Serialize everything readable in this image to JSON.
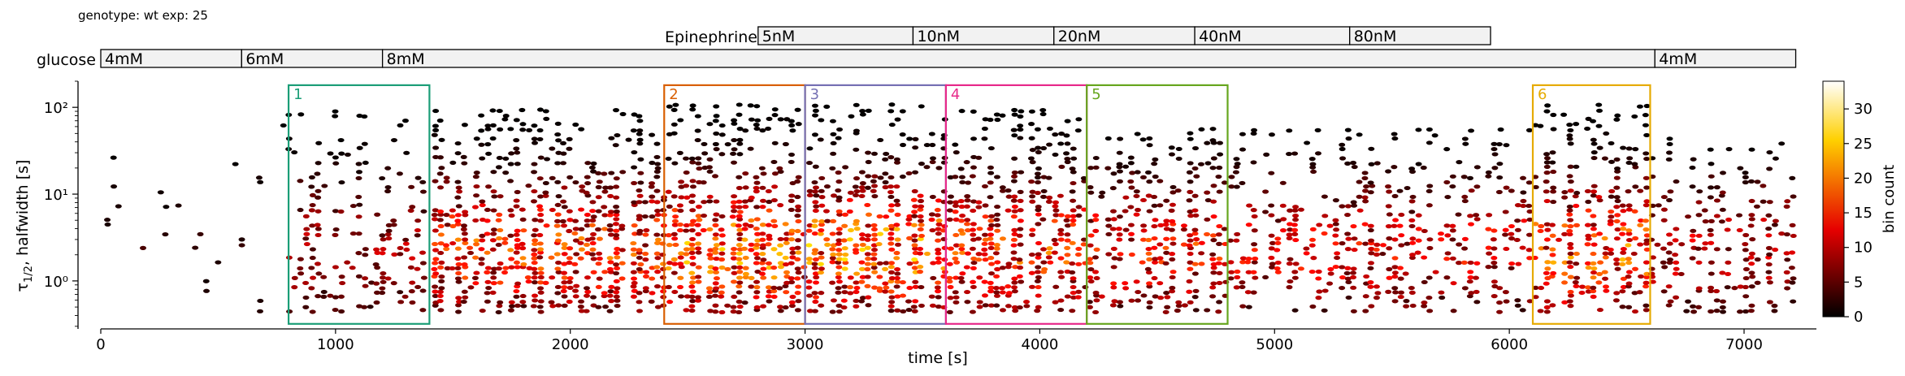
{
  "header": {
    "genotype_label": "genotype: wt  exp: 25"
  },
  "epinephrine": {
    "label": "Epinephrine",
    "segments": [
      {
        "label": "5nM",
        "start": 2800,
        "end": 3460
      },
      {
        "label": "10nM",
        "start": 3460,
        "end": 4060
      },
      {
        "label": "20nM",
        "start": 4060,
        "end": 4660
      },
      {
        "label": "40nM",
        "start": 4660,
        "end": 5320
      },
      {
        "label": "80nM",
        "start": 5320,
        "end": 5920
      }
    ]
  },
  "glucose": {
    "label": "glucose",
    "segments": [
      {
        "label": "4mM",
        "start": 0,
        "end": 600
      },
      {
        "label": "6mM",
        "start": 600,
        "end": 1200
      },
      {
        "label": "8mM",
        "start": 1200,
        "end": 6620
      },
      {
        "label": "4mM",
        "start": 6620,
        "end": 7220
      }
    ]
  },
  "chart_data": {
    "type": "heatmap",
    "subtype": "hexbin",
    "xlabel": "time [s]",
    "ylabel": "τ1/2, halfwidth [s]",
    "ylabel_main": "τ",
    "ylabel_sub": "1/2",
    "ylabel_rest": ", halfwidth [s]",
    "xlim": [
      0,
      7220
    ],
    "ylim": [
      0.28,
      200
    ],
    "yscale": "log",
    "xticks": [
      0,
      1000,
      2000,
      3000,
      4000,
      5000,
      6000,
      7000
    ],
    "xtick_labels": [
      "0",
      "1000",
      "2000",
      "3000",
      "4000",
      "5000",
      "6000",
      "7000"
    ],
    "yticks": [
      1,
      10,
      100
    ],
    "ytick_labels": [
      "10⁰",
      "10¹",
      "10²"
    ],
    "colorbar": {
      "label": "bin count",
      "min": 0,
      "max": 34,
      "ticks": [
        0,
        5,
        10,
        15,
        20,
        25,
        30
      ],
      "tick_labels": [
        "0",
        "5",
        "10",
        "15",
        "20",
        "25",
        "30"
      ],
      "colormap": "hot"
    },
    "regions": [
      {
        "label": "1",
        "x0": 800,
        "x1": 1400,
        "y0": 0.32,
        "y1": 180,
        "color": "#1b9e77"
      },
      {
        "label": "2",
        "x0": 2400,
        "x1": 3000,
        "y0": 0.32,
        "y1": 180,
        "color": "#d95f02"
      },
      {
        "label": "3",
        "x0": 3000,
        "x1": 3600,
        "y0": 0.32,
        "y1": 180,
        "color": "#7570b3"
      },
      {
        "label": "4",
        "x0": 3600,
        "x1": 4200,
        "y0": 0.32,
        "y1": 180,
        "color": "#e7298a"
      },
      {
        "label": "5",
        "x0": 4200,
        "x1": 4800,
        "y0": 0.32,
        "y1": 180,
        "color": "#66a61e"
      },
      {
        "label": "6",
        "x0": 6100,
        "x1": 6600,
        "y0": 0.32,
        "y1": 180,
        "color": "#e6ab02"
      }
    ],
    "density_profile": [
      {
        "x0": 0,
        "x1": 600,
        "density": 0.04,
        "ytop": 80,
        "intensity": 0.08
      },
      {
        "x0": 600,
        "x1": 800,
        "density": 0.05,
        "ytop": 70,
        "intensity": 0.1
      },
      {
        "x0": 800,
        "x1": 1400,
        "density": 0.35,
        "ytop": 100,
        "intensity": 0.25
      },
      {
        "x0": 1400,
        "x1": 2400,
        "density": 0.85,
        "ytop": 100,
        "intensity": 0.45
      },
      {
        "x0": 2400,
        "x1": 3600,
        "density": 0.95,
        "ytop": 110,
        "intensity": 0.55
      },
      {
        "x0": 3600,
        "x1": 4200,
        "density": 0.85,
        "ytop": 100,
        "intensity": 0.45
      },
      {
        "x0": 4200,
        "x1": 4800,
        "density": 0.7,
        "ytop": 60,
        "intensity": 0.4
      },
      {
        "x0": 4800,
        "x1": 6100,
        "density": 0.45,
        "ytop": 60,
        "intensity": 0.35
      },
      {
        "x0": 6100,
        "x1": 6600,
        "density": 0.8,
        "ytop": 110,
        "intensity": 0.5
      },
      {
        "x0": 6600,
        "x1": 7220,
        "density": 0.5,
        "ytop": 45,
        "intensity": 0.3
      }
    ]
  }
}
